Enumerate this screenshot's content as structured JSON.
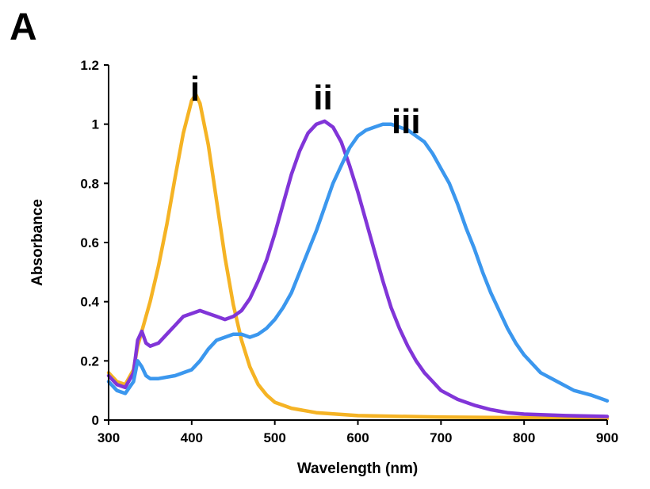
{
  "panel_label": "A",
  "chart_data": {
    "type": "line",
    "title": "",
    "xlabel": "Wavelength (nm)",
    "ylabel": "Absorbance",
    "xlim": [
      300,
      900
    ],
    "ylim": [
      0,
      1.2
    ],
    "x_ticks": [
      300,
      400,
      500,
      600,
      700,
      800,
      900
    ],
    "y_ticks": [
      0,
      0.2,
      0.4,
      0.6,
      0.8,
      1,
      1.2
    ],
    "x_tick_labels": [
      "300",
      "400",
      "500",
      "600",
      "700",
      "800",
      "900"
    ],
    "y_tick_labels": [
      "0",
      "0.2",
      "0.4",
      "0.6",
      "0.8",
      "1",
      "1.2"
    ],
    "grid": false,
    "series": [
      {
        "label": "i",
        "color": "#F5B324",
        "label_x": 404,
        "label_y": 1.08,
        "points": [
          [
            300,
            0.16
          ],
          [
            310,
            0.13
          ],
          [
            320,
            0.12
          ],
          [
            330,
            0.17
          ],
          [
            335,
            0.25
          ],
          [
            340,
            0.3
          ],
          [
            350,
            0.4
          ],
          [
            360,
            0.52
          ],
          [
            370,
            0.66
          ],
          [
            380,
            0.82
          ],
          [
            390,
            0.97
          ],
          [
            400,
            1.08
          ],
          [
            405,
            1.1
          ],
          [
            410,
            1.07
          ],
          [
            420,
            0.93
          ],
          [
            430,
            0.74
          ],
          [
            440,
            0.55
          ],
          [
            450,
            0.39
          ],
          [
            460,
            0.27
          ],
          [
            470,
            0.18
          ],
          [
            480,
            0.12
          ],
          [
            490,
            0.085
          ],
          [
            500,
            0.06
          ],
          [
            520,
            0.04
          ],
          [
            550,
            0.025
          ],
          [
            600,
            0.015
          ],
          [
            700,
            0.01
          ],
          [
            800,
            0.008
          ],
          [
            900,
            0.005
          ]
        ]
      },
      {
        "label": "ii",
        "color": "#8135D8",
        "label_x": 558,
        "label_y": 1.05,
        "points": [
          [
            300,
            0.15
          ],
          [
            310,
            0.12
          ],
          [
            320,
            0.11
          ],
          [
            330,
            0.16
          ],
          [
            335,
            0.27
          ],
          [
            340,
            0.3
          ],
          [
            345,
            0.26
          ],
          [
            350,
            0.25
          ],
          [
            360,
            0.26
          ],
          [
            370,
            0.29
          ],
          [
            380,
            0.32
          ],
          [
            390,
            0.35
          ],
          [
            400,
            0.36
          ],
          [
            410,
            0.37
          ],
          [
            420,
            0.36
          ],
          [
            430,
            0.35
          ],
          [
            440,
            0.34
          ],
          [
            450,
            0.35
          ],
          [
            460,
            0.37
          ],
          [
            470,
            0.41
          ],
          [
            480,
            0.47
          ],
          [
            490,
            0.54
          ],
          [
            500,
            0.63
          ],
          [
            510,
            0.73
          ],
          [
            520,
            0.83
          ],
          [
            530,
            0.91
          ],
          [
            540,
            0.97
          ],
          [
            550,
            1.0
          ],
          [
            560,
            1.01
          ],
          [
            570,
            0.99
          ],
          [
            580,
            0.94
          ],
          [
            590,
            0.86
          ],
          [
            600,
            0.77
          ],
          [
            610,
            0.67
          ],
          [
            620,
            0.57
          ],
          [
            630,
            0.47
          ],
          [
            640,
            0.38
          ],
          [
            650,
            0.31
          ],
          [
            660,
            0.25
          ],
          [
            670,
            0.2
          ],
          [
            680,
            0.16
          ],
          [
            690,
            0.13
          ],
          [
            700,
            0.1
          ],
          [
            720,
            0.07
          ],
          [
            740,
            0.05
          ],
          [
            760,
            0.035
          ],
          [
            780,
            0.025
          ],
          [
            800,
            0.02
          ],
          [
            850,
            0.015
          ],
          [
            900,
            0.012
          ]
        ]
      },
      {
        "label": "iii",
        "color": "#3B97EE",
        "label_x": 658,
        "label_y": 0.97,
        "points": [
          [
            300,
            0.13
          ],
          [
            310,
            0.1
          ],
          [
            320,
            0.09
          ],
          [
            330,
            0.13
          ],
          [
            335,
            0.2
          ],
          [
            340,
            0.18
          ],
          [
            345,
            0.15
          ],
          [
            350,
            0.14
          ],
          [
            360,
            0.14
          ],
          [
            380,
            0.15
          ],
          [
            400,
            0.17
          ],
          [
            410,
            0.2
          ],
          [
            420,
            0.24
          ],
          [
            430,
            0.27
          ],
          [
            440,
            0.28
          ],
          [
            450,
            0.29
          ],
          [
            460,
            0.29
          ],
          [
            470,
            0.28
          ],
          [
            480,
            0.29
          ],
          [
            490,
            0.31
          ],
          [
            500,
            0.34
          ],
          [
            510,
            0.38
          ],
          [
            520,
            0.43
          ],
          [
            530,
            0.5
          ],
          [
            540,
            0.57
          ],
          [
            550,
            0.64
          ],
          [
            560,
            0.72
          ],
          [
            570,
            0.8
          ],
          [
            580,
            0.86
          ],
          [
            590,
            0.92
          ],
          [
            600,
            0.96
          ],
          [
            610,
            0.98
          ],
          [
            620,
            0.99
          ],
          [
            630,
            1.0
          ],
          [
            640,
            1.0
          ],
          [
            650,
            0.99
          ],
          [
            660,
            0.98
          ],
          [
            670,
            0.96
          ],
          [
            680,
            0.94
          ],
          [
            690,
            0.9
          ],
          [
            700,
            0.85
          ],
          [
            710,
            0.8
          ],
          [
            720,
            0.73
          ],
          [
            730,
            0.65
          ],
          [
            740,
            0.58
          ],
          [
            750,
            0.5
          ],
          [
            760,
            0.43
          ],
          [
            770,
            0.37
          ],
          [
            780,
            0.31
          ],
          [
            790,
            0.26
          ],
          [
            800,
            0.22
          ],
          [
            820,
            0.16
          ],
          [
            840,
            0.13
          ],
          [
            860,
            0.1
          ],
          [
            880,
            0.085
          ],
          [
            900,
            0.065
          ]
        ]
      }
    ]
  }
}
